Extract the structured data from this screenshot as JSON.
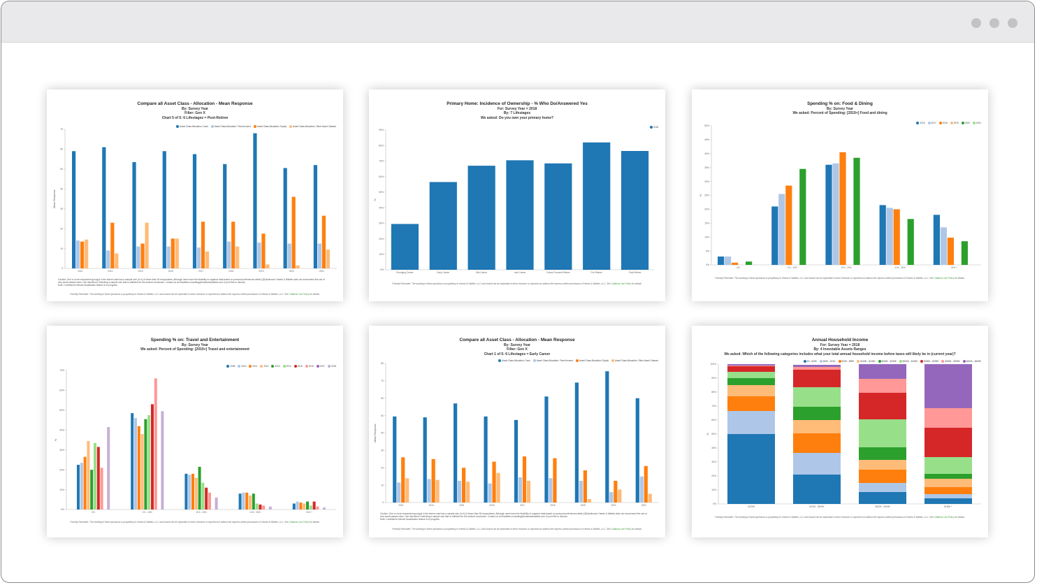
{
  "chart_data": [
    {
      "type": "bar",
      "title": "Compare all Asset Class - Allocation - Mean Response",
      "subtitles": [
        "By: Survey Year",
        "Filter: Gen X",
        "Chart 5 of 5: 6 Lifestages = Post-Retiree"
      ],
      "ylabel": "Mean Response",
      "ylim": [
        0,
        70
      ],
      "yticks": [
        "0",
        "10",
        "20",
        "30",
        "40",
        "50",
        "60",
        "70"
      ],
      "categories": [
        "2013",
        "2014",
        "2015",
        "2016",
        "2017",
        "2018",
        "2019",
        "2020",
        "2021"
      ],
      "legend_position": "top-right",
      "series": [
        {
          "name": "Asset Class Allocation: Cash",
          "values": [
            59,
            61,
            53.5,
            59,
            57.5,
            52.5,
            68,
            50.5,
            52
          ]
        },
        {
          "name": "Asset Class Allocation: Fixed Income",
          "values": [
            14,
            9,
            11,
            11,
            10.5,
            13.5,
            13,
            12.5,
            12.5
          ]
        },
        {
          "name": "Asset Class Allocation: Equity",
          "values": [
            13.5,
            23,
            12.5,
            15,
            23.5,
            23.5,
            17.5,
            36,
            26.5
          ]
        },
        {
          "name": "Asset Class Allocation: Other Asset Classes",
          "values": [
            14.5,
            7.5,
            23,
            15,
            8.5,
            11,
            2,
            1.5,
            9.5
          ]
        }
      ],
      "note_lines": [
        "Caution: One or more respondent group(s) in the above chart has a sample size (n<X) of fewer than 50 respondents. Although users have the flexibility to organize data based on personal preferences within [X]Dashboard, Hearts & Wallets does not recommend the use of",
        "very small sample sizes. Use discretion if selecting a sample size that is sufficient for the desired conclusion. Contact us at hhwallets.consulting@heartsandwallets.com if you'd like to discuss.",
        "Note: Confidence interval visualization feature is in progress."
      ],
      "footer": "Friendly Reminder: The wording of these questions is proprietary to Hearts & Wallets, LLC and should not be replicated in other research or reported out without the express written permission of Hearts & Wallets, LLC. See",
      "footer_link": "Citations Use Policy",
      "footer_end": "for details."
    },
    {
      "type": "bar",
      "title": "Primary Home: Incidence of Ownership - % Who Do/Answered Yes",
      "subtitles": [
        "For: Survey Year = 2018",
        "By: 7 Lifestages",
        "We asked: Do you own your primary home?"
      ],
      "ylabel": "%",
      "ylim": [
        0,
        90
      ],
      "yticks": [
        "0%",
        "10%",
        "20%",
        "30%",
        "40%",
        "50%",
        "60%",
        "70%",
        "80%",
        "90%"
      ],
      "categories": [
        "Emerging Career",
        "Early Career",
        "Mid-Career",
        "Late Career",
        "Future-Focused Retiree",
        "Pre-Retiree",
        "Post-Retiree"
      ],
      "legend_position": "top-right",
      "series": [
        {
          "name": "2018",
          "values": [
            29.5,
            56.5,
            67,
            70.5,
            68.5,
            82,
            76.5
          ]
        }
      ],
      "footer": "Friendly Reminder: The wording of these questions is proprietary to Hearts & Wallets, LLC and should not be replicated in other research or reported out without the express written permission of Hearts & Wallets, LLC. See",
      "footer_link": "Citations Use Policy",
      "footer_end": "for details."
    },
    {
      "type": "bar",
      "title": "Spending % on: Food & Dining",
      "subtitles": [
        "By: Survey Year",
        "We asked: Percent of Spending: [2019+] Food and dining"
      ],
      "ylabel": "%",
      "ylim": [
        0,
        50
      ],
      "yticks": [
        "0%",
        "5%",
        "10%",
        "15%",
        "20%",
        "25%",
        "30%",
        "35%",
        "40%",
        "45%",
        "50%"
      ],
      "categories": [
        "0%",
        "1% - 10%",
        "11% - 20%",
        "21% - 30%",
        "31% +"
      ],
      "legend_position": "top-right",
      "series": [
        {
          "name": "2016",
          "values": [
            3,
            21,
            36,
            21.5,
            18
          ]
        },
        {
          "name": "2017",
          "values": [
            3,
            25.5,
            36.5,
            20.5,
            13.5
          ]
        },
        {
          "name": "2018",
          "values": [
            0.8,
            28.5,
            40.5,
            20,
            9.8
          ]
        },
        {
          "name": "2019",
          "values": [
            0,
            0,
            0,
            0,
            0
          ]
        },
        {
          "name": "2020",
          "values": [
            1.2,
            34.5,
            38.5,
            16.5,
            8.5
          ]
        },
        {
          "name": "2021",
          "values": [
            0,
            0,
            0,
            0,
            0
          ]
        }
      ],
      "footer": "Friendly Reminder: The wording of these questions is proprietary to Hearts & Wallets, LLC and should not be replicated in other research or reported out without the express written permission of Hearts & Wallets, LLC. See",
      "footer_link": "Citations Use Policy",
      "footer_end": "for details."
    },
    {
      "type": "bar",
      "title": "Spending % on: Travel and Entertainment",
      "subtitles": [
        "By: Survey Year",
        "We asked: Percent of Spending: [2019+] Travel and entertainment"
      ],
      "ylabel": "%",
      "ylim": [
        0,
        70
      ],
      "yticks": [
        "0%",
        "10%",
        "20%",
        "30%",
        "40%",
        "50%",
        "60%",
        "70%"
      ],
      "categories": [
        "0%",
        "1% - 10%",
        "11% - 20%",
        "21% - 30%",
        "31% +"
      ],
      "legend_position": "top-right",
      "series": [
        {
          "name": "2008",
          "values": [
            22.5,
            48.5,
            18,
            8,
            3
          ]
        },
        {
          "name": "2010",
          "values": [
            23.5,
            46,
            17.5,
            8.5,
            4
          ]
        },
        {
          "name": "2011",
          "values": [
            26.5,
            42,
            18,
            8.5,
            3.5
          ]
        },
        {
          "name": "2012",
          "values": [
            34.5,
            38,
            16,
            7,
            3
          ]
        },
        {
          "name": "2013",
          "values": [
            20,
            45.5,
            21.5,
            8,
            4
          ]
        },
        {
          "name": "2014",
          "values": [
            33.5,
            47.5,
            13.5,
            3,
            2
          ]
        },
        {
          "name": "2015",
          "values": [
            31.5,
            53,
            11,
            2.5,
            4
          ]
        },
        {
          "name": "2016",
          "values": [
            21,
            66,
            8.5,
            2,
            1.5
          ]
        },
        {
          "name": "2017",
          "values": [
            0,
            0,
            0,
            0,
            0
          ]
        },
        {
          "name": "2018",
          "values": [
            41.5,
            49.5,
            6,
            1.5,
            1
          ]
        }
      ],
      "footer": "Friendly Reminder: The wording of these questions is proprietary to Hearts & Wallets, LLC and should not be replicated in other research or reported out without the express written permission of Hearts & Wallets, LLC. See",
      "footer_link": "Citations Use Policy",
      "footer_end": "for details."
    },
    {
      "type": "bar",
      "title": "Compare all Asset Class - Allocation - Mean Response",
      "subtitles": [
        "By: Survey Year",
        "Filter: Gen X",
        "Chart 1 of 5: 6 Lifestages = Early Career"
      ],
      "ylabel": "Mean Response",
      "ylim": [
        0,
        80
      ],
      "yticks": [
        "0",
        "10",
        "20",
        "30",
        "40",
        "50",
        "60",
        "70",
        "80"
      ],
      "categories": [
        "2013",
        "2014",
        "2015",
        "2016",
        "2017",
        "2018",
        "2019",
        "2020",
        "2021"
      ],
      "legend_position": "top-right",
      "series": [
        {
          "name": "Asset Class Allocation: Cash",
          "values": [
            49.5,
            49,
            57,
            49.5,
            47.5,
            61,
            69,
            75.5,
            60
          ]
        },
        {
          "name": "Asset Class Allocation: Fixed Income",
          "values": [
            11.5,
            13.5,
            12.5,
            11,
            14.5,
            14,
            12.5,
            6,
            15
          ]
        },
        {
          "name": "Asset Class Allocation: Equity",
          "values": [
            26,
            25,
            20,
            23.5,
            26.5,
            25.5,
            18.5,
            12.5,
            21
          ]
        },
        {
          "name": "Asset Class Allocation: Other Asset Classes",
          "values": [
            14,
            13,
            12,
            17,
            12.5,
            0,
            2,
            7.5,
            5
          ]
        }
      ],
      "note_lines": [
        "Caution: One or more respondent group(s) in the above chart has a sample size (n<X) of fewer than 50 respondents. Although users have the flexibility to organize data based on personal preferences within [X]Dashboard, Hearts & Wallets does not recommend the use of",
        "very small sample sizes. Use discretion if selecting a sample size that is sufficient for the desired conclusion. Contact us at hhwallets.consulting@heartsandwallets.com if you'd like to discuss.",
        "Note: Confidence interval visualization feature is in progress."
      ],
      "footer": "Friendly Reminder: The wording of these questions is proprietary to Hearts & Wallets, LLC and should not be replicated in other research or reported out without the express written permission of Hearts & Wallets, LLC. See",
      "footer_link": "Citations Use Policy",
      "footer_end": "for details."
    },
    {
      "type": "stacked-bar",
      "title": "Annual Household Income",
      "subtitles": [
        "For: Survey Year = 2018",
        "By: 4 Investable Assets Ranges",
        "We asked: Which of the following categories includes what your total annual household income before taxes will likely be in (current year)?"
      ],
      "ylabel": "%",
      "ylim": [
        0,
        100
      ],
      "yticks": [
        "0%",
        "10%",
        "20%",
        "30%",
        "40%",
        "50%",
        "60%",
        "70%",
        "80%",
        "90%",
        "100%"
      ],
      "categories": [
        "<$100K",
        "$100K - $500K",
        "$500K - $1MM",
        "$1MM +"
      ],
      "legend_position": "top-right",
      "series": [
        {
          "name": "$0 - $49K",
          "values": [
            50,
            21,
            8.5,
            4
          ]
        },
        {
          "name": "$49K - $74K",
          "values": [
            16.5,
            15.5,
            6.5,
            3
          ]
        },
        {
          "name": "$75K - $99K",
          "values": [
            10.5,
            14,
            9.5,
            5
          ]
        },
        {
          "name": "$100K - $149K",
          "values": [
            8,
            9.5,
            7,
            6
          ]
        },
        {
          "name": "$150K - $199K",
          "values": [
            5,
            9.5,
            9,
            3.5
          ]
        },
        {
          "name": "$200K - $249K",
          "values": [
            4.5,
            14,
            20,
            12
          ]
        },
        {
          "name": "$250K - $299K",
          "values": [
            4,
            12.5,
            19,
            21
          ]
        },
        {
          "name": "$300K - $399K",
          "values": [
            0.5,
            2,
            10,
            14
          ]
        },
        {
          "name": "$400K - $499K",
          "values": [
            1,
            1.5,
            10.5,
            31.5
          ]
        }
      ],
      "footer": "Friendly Reminder: The wording of these questions is proprietary to Hearts & Wallets, LLC and should not be replicated in other research or reported out without the express written permission of Hearts & Wallets, LLC. See",
      "footer_link": "Citations Use Policy",
      "footer_end": "for details."
    }
  ],
  "colors": {
    "asset": [
      "#1f77b4",
      "#aec7e8",
      "#ff7f0e",
      "#ffbb78"
    ],
    "single": [
      "#1f77b4"
    ],
    "food": [
      "#1f77b4",
      "#aec7e8",
      "#ff7f0e",
      "#ffbb78",
      "#2ca02c",
      "#98df8a"
    ],
    "travel": [
      "#1f77b4",
      "#aec7e8",
      "#ff7f0e",
      "#ffbb78",
      "#2ca02c",
      "#98df8a",
      "#d62728",
      "#ff9896",
      "#9467bd",
      "#c5b0d5"
    ],
    "income": [
      "#1f77b4",
      "#aec7e8",
      "#ff7f0e",
      "#ffbb78",
      "#2ca02c",
      "#98df8a",
      "#d62728",
      "#ff9896",
      "#9467bd"
    ]
  }
}
